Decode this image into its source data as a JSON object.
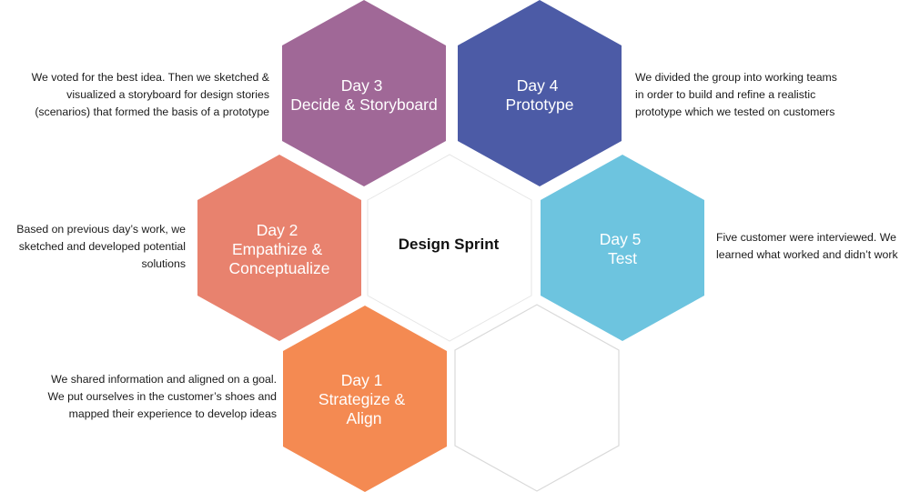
{
  "center": {
    "title": "Design Sprint"
  },
  "days": [
    {
      "id": "day1",
      "label_lines": [
        "Day 1",
        "Strategize &",
        "Align"
      ],
      "color": "#f48a52",
      "description": [
        "We shared information and aligned on a goal.",
        "We put ourselves in the customer’s shoes and",
        "mapped their experience to develop ideas"
      ]
    },
    {
      "id": "day2",
      "label_lines": [
        "Day 2",
        "Empathize &",
        "Conceptualize"
      ],
      "color": "#e8826e",
      "description": [
        "Based on previous day’s work, we",
        "sketched and developed potential",
        "solutions"
      ]
    },
    {
      "id": "day3",
      "label_lines": [
        "Day 3",
        "Decide & Storyboard"
      ],
      "color": "#a06897",
      "description": [
        "We voted for the best idea. Then we sketched &",
        "visualized a storyboard for design stories",
        "(scenarios) that formed the basis of a prototype"
      ]
    },
    {
      "id": "day4",
      "label_lines": [
        "Day 4",
        "Prototype"
      ],
      "color": "#4c5ba6",
      "description": [
        "We divided the group into working teams",
        "in order to build and refine a realistic",
        "prototype which we tested on customers"
      ]
    },
    {
      "id": "day5",
      "label_lines": [
        "Day 5",
        "Test"
      ],
      "color": "#6dc4df",
      "description": [
        "Five customer were interviewed. We",
        "learned what worked and didn’t work"
      ]
    }
  ],
  "colors": {
    "center_fill": "#ffffff",
    "outline": "#d9d9d9",
    "empty_fill": "#ffffff"
  }
}
